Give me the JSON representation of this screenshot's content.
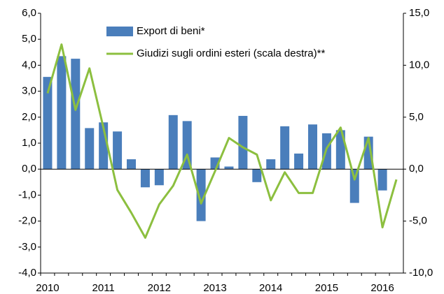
{
  "chart_data": {
    "type": "bar_line",
    "categories": [
      "2010",
      null,
      null,
      null,
      "2011",
      null,
      null,
      null,
      "2012",
      null,
      null,
      null,
      "2013",
      null,
      null,
      null,
      "2014",
      null,
      null,
      null,
      "2015",
      null,
      null,
      null,
      "2016",
      null
    ],
    "series": [
      {
        "name": "Export di beni*",
        "type": "bar",
        "color": "#4a7ebb",
        "axis": "y",
        "values": [
          3.55,
          4.35,
          4.25,
          1.58,
          1.8,
          1.45,
          0.38,
          -0.7,
          -0.62,
          2.08,
          1.85,
          -2.0,
          0.45,
          0.1,
          2.05,
          -0.5,
          0.38,
          1.65,
          0.6,
          1.72,
          1.38,
          1.5,
          -1.3,
          1.25,
          -0.82,
          null
        ]
      },
      {
        "name": "Giudizi sugli ordini esteri (scala destra)**",
        "type": "line",
        "color": "#8cbf3f",
        "axis": "y2",
        "values": [
          7.3,
          12.0,
          5.7,
          9.7,
          4.0,
          -2.0,
          -4.2,
          -6.6,
          -3.4,
          -1.6,
          1.4,
          -3.3,
          -0.2,
          3.0,
          2.1,
          1.4,
          -3.0,
          -0.3,
          -2.3,
          -2.3,
          2.0,
          4.0,
          -1.0,
          3.0,
          -5.6,
          -1.0
        ]
      }
    ],
    "ylim": [
      -4,
      6
    ],
    "yticks": [
      {
        "value": -4,
        "label": "-4,0"
      },
      {
        "value": -3,
        "label": "-3,0"
      },
      {
        "value": -2,
        "label": "-2,0"
      },
      {
        "value": -1,
        "label": "-1,0"
      },
      {
        "value": 0,
        "label": "0,0"
      },
      {
        "value": 1,
        "label": "1,0"
      },
      {
        "value": 2,
        "label": "2,0"
      },
      {
        "value": 3,
        "label": "3,0"
      },
      {
        "value": 4,
        "label": "4,0"
      },
      {
        "value": 5,
        "label": "5,0"
      },
      {
        "value": 6,
        "label": "6,0"
      }
    ],
    "y2lim": [
      -10,
      15
    ],
    "y2ticks": [
      {
        "value": -10,
        "label": "-10,0"
      },
      {
        "value": -5,
        "label": "-5,0"
      },
      {
        "value": 0,
        "label": "0,0"
      },
      {
        "value": 5,
        "label": "5,0"
      },
      {
        "value": 10,
        "label": "10,0"
      },
      {
        "value": 15,
        "label": "15,0"
      }
    ]
  }
}
